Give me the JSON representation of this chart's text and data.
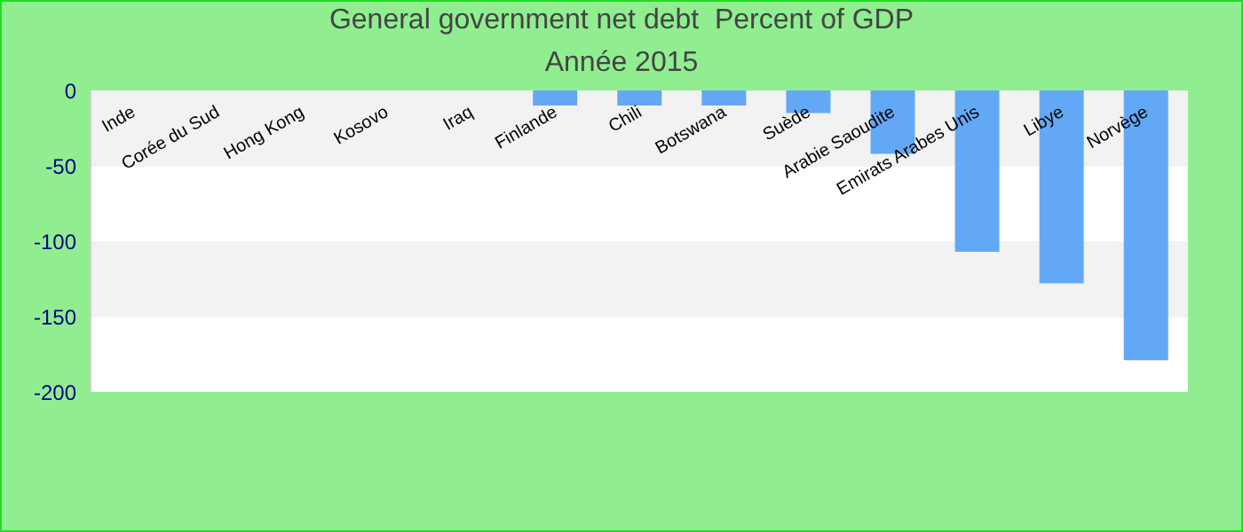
{
  "chart_data": {
    "type": "bar",
    "title": "General government net debt  Percent of GDP",
    "subtitle": "Année 2015",
    "categories": [
      "Inde",
      "Corée du Sud",
      "Hong Kong",
      "Kosovo",
      "Iraq",
      "Finlande",
      "Chili",
      "Botswana",
      "Suède",
      "Arabie Saoudite",
      "Emirats Arabes  Unis",
      "Libye",
      "Norvège"
    ],
    "values": [
      null,
      null,
      null,
      null,
      null,
      -10,
      -10,
      -10,
      -15,
      -42,
      -107,
      -128,
      -179
    ],
    "color": "#63a8f5",
    "ylim": [
      -200,
      0
    ],
    "yticks": [
      0,
      -50,
      -100,
      -150,
      -200
    ]
  }
}
